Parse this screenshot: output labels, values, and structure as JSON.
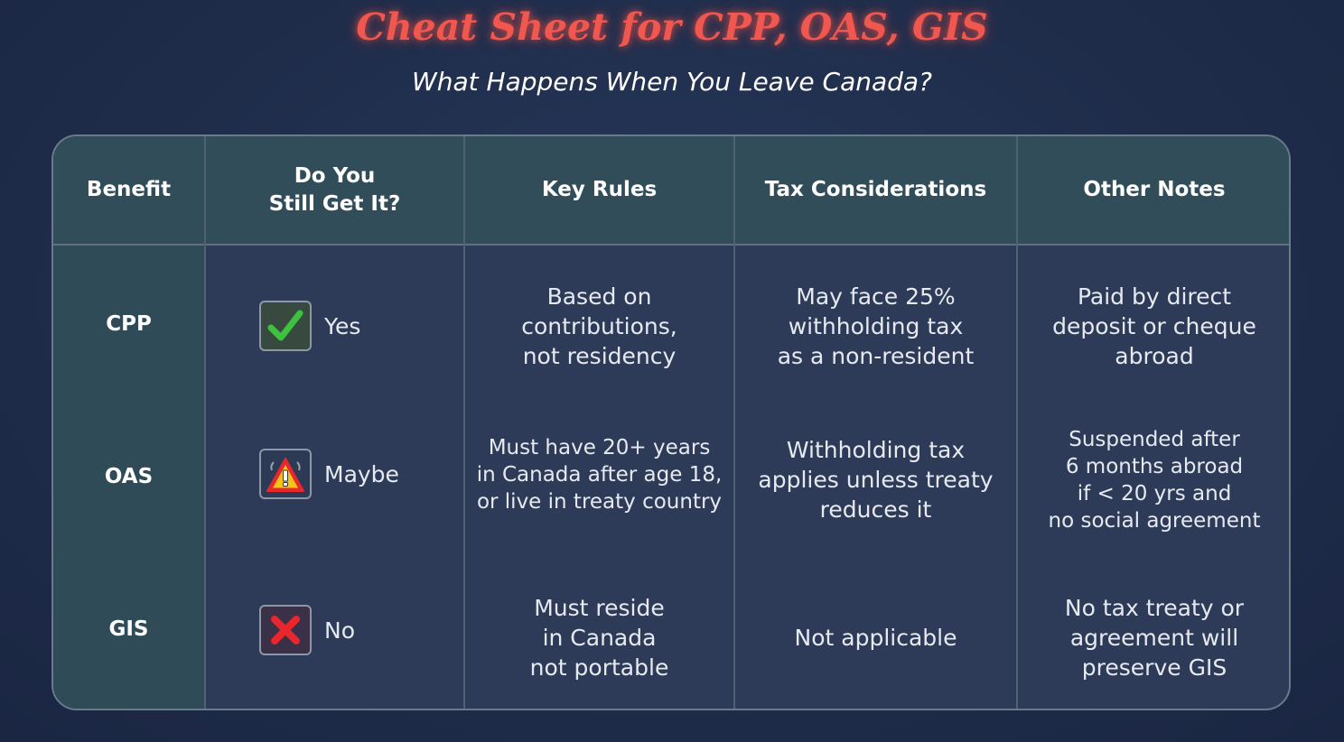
{
  "title": "Cheat Sheet for CPP, OAS, GIS",
  "subtitle": "What Happens When You Leave Canada?",
  "table": {
    "headers": {
      "benefit": "Benefit",
      "still_get_line1": "Do You",
      "still_get_line2": "Still Get It?",
      "key_rules": "Key Rules",
      "tax": "Tax Considerations",
      "notes": "Other Notes"
    },
    "rows": [
      {
        "benefit": "CPP",
        "status": "Yes",
        "status_icon": "green-checkmark-icon",
        "key_rules": [
          "Based on",
          "contributions,",
          "not residency"
        ],
        "tax": [
          "May face 25%",
          "withholding tax",
          "as a non-resident"
        ],
        "notes": [
          "Paid by direct",
          "deposit or cheque",
          "abroad"
        ]
      },
      {
        "benefit": "OAS",
        "status": "Maybe",
        "status_icon": "warning-triangle-icon",
        "key_rules": [
          "Must have 20+ years",
          "in Canada after age 18,",
          "or live in treaty country"
        ],
        "tax": [
          "Withholding tax",
          "applies unless treaty",
          "reduces it"
        ],
        "notes": [
          "Suspended after",
          "6 months abroad",
          "if < 20 yrs and",
          "no social agreement"
        ]
      },
      {
        "benefit": "GIS",
        "status": "No",
        "status_icon": "red-x-icon",
        "key_rules": [
          "Must reside",
          "in Canada",
          "not portable"
        ],
        "tax": [
          "Not applicable"
        ],
        "notes": [
          "No tax treaty or",
          "agreement will",
          "preserve GIS"
        ]
      }
    ]
  },
  "colors": {
    "title": "#f0574e",
    "background": "#1f2d4b",
    "header_bg": "#324d5a",
    "benefit_col_bg": "#2f4b58",
    "body_bg": "#2e3b58",
    "check_green": "#3cc23f",
    "x_red": "#e8262b",
    "warning_yellow": "#f5c418"
  }
}
